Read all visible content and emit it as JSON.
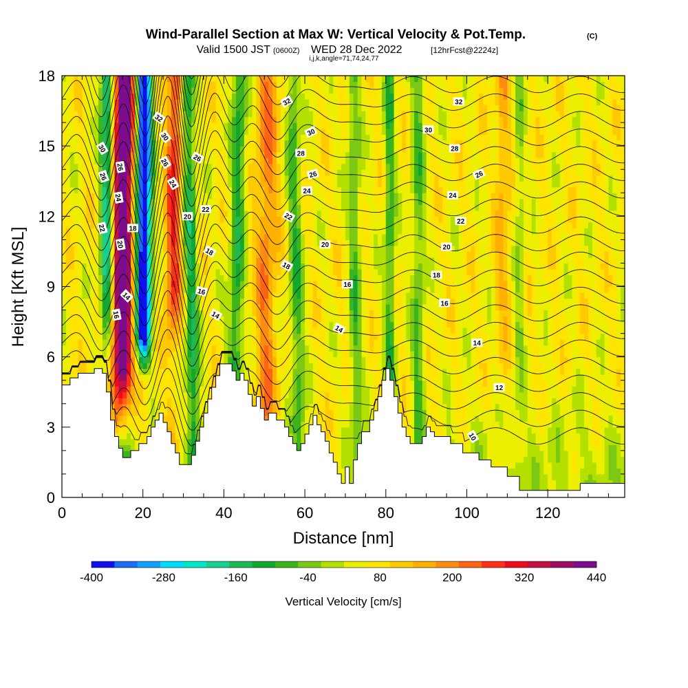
{
  "title": {
    "main": "Wind-Parallel Section at Max W: Vertical Velocity & Pot.Temp.",
    "unit": "(C)",
    "valid_prefix": "Valid 1500 JST",
    "valid_zulu": "(0600Z)",
    "valid_date": "WED 28 Dec 2022",
    "valid_fcst": "[12hrFcst@2224z]",
    "indices": "i,j,k,angle=71,74,24,77"
  },
  "chart_data": {
    "type": "heatmap",
    "xlabel": "Distance [nm]",
    "ylabel": "Height [Kft MSL]",
    "xlim": [
      0,
      139
    ],
    "ylim": [
      0,
      18
    ],
    "x_ticks": [
      0,
      20,
      40,
      60,
      80,
      100,
      120
    ],
    "y_ticks": [
      0,
      3,
      6,
      9,
      12,
      15,
      18
    ],
    "colorbar": {
      "label": "Vertical Velocity [cm/s]",
      "tick_labels": [
        "-400",
        "-280",
        "-160",
        "-40",
        "80",
        "200",
        "320",
        "440"
      ],
      "tick_values": [
        -400,
        -280,
        -160,
        -40,
        80,
        200,
        320,
        440
      ],
      "min": -400,
      "max": 440,
      "colors": [
        "#1010ee",
        "#1c6cf4",
        "#14a0ff",
        "#00dcff",
        "#00e8c8",
        "#16d08e",
        "#1cb85a",
        "#12a830",
        "#3cb41c",
        "#7cc814",
        "#b4e000",
        "#ecf000",
        "#ffe400",
        "#ffca00",
        "#ffb000",
        "#ff8c10",
        "#ff6414",
        "#ff3018",
        "#ee0c1c",
        "#c41044",
        "#9c0c64",
        "#7c0c8c"
      ]
    },
    "terrain": [
      [
        0,
        4.8
      ],
      [
        2,
        4.8
      ],
      [
        2,
        5.1
      ],
      [
        4,
        5.1
      ],
      [
        4,
        5.3
      ],
      [
        8,
        5.3
      ],
      [
        8,
        5.5
      ],
      [
        10,
        5.5
      ],
      [
        10,
        5.3
      ],
      [
        11,
        5.3
      ],
      [
        11,
        4.5
      ],
      [
        12,
        4.5
      ],
      [
        12,
        3.3
      ],
      [
        13,
        3.3
      ],
      [
        13,
        2.6
      ],
      [
        14,
        2.6
      ],
      [
        14,
        2.1
      ],
      [
        15,
        2.1
      ],
      [
        15,
        1.7
      ],
      [
        17,
        1.7
      ],
      [
        17,
        2.0
      ],
      [
        19,
        2.0
      ],
      [
        19,
        2.3
      ],
      [
        21,
        2.3
      ],
      [
        21,
        2.6
      ],
      [
        22,
        2.6
      ],
      [
        22,
        3.0
      ],
      [
        23,
        3.0
      ],
      [
        23,
        3.3
      ],
      [
        24,
        3.3
      ],
      [
        24,
        3.6
      ],
      [
        25,
        3.6
      ],
      [
        25,
        3.2
      ],
      [
        26,
        3.2
      ],
      [
        26,
        2.8
      ],
      [
        27,
        2.8
      ],
      [
        27,
        2.3
      ],
      [
        28,
        2.3
      ],
      [
        28,
        1.9
      ],
      [
        29,
        1.9
      ],
      [
        29,
        1.4
      ],
      [
        32,
        1.4
      ],
      [
        32,
        1.8
      ],
      [
        33,
        1.8
      ],
      [
        33,
        2.4
      ],
      [
        34,
        2.4
      ],
      [
        34,
        3.0
      ],
      [
        35,
        3.0
      ],
      [
        35,
        3.6
      ],
      [
        36,
        3.6
      ],
      [
        36,
        4.2
      ],
      [
        37,
        4.2
      ],
      [
        37,
        4.7
      ],
      [
        38,
        4.7
      ],
      [
        38,
        5.2
      ],
      [
        39,
        5.2
      ],
      [
        39,
        5.7
      ],
      [
        42,
        5.7
      ],
      [
        42,
        5.4
      ],
      [
        43,
        5.4
      ],
      [
        43,
        5.0
      ],
      [
        44,
        5.0
      ],
      [
        44,
        5.3
      ],
      [
        45,
        5.3
      ],
      [
        45,
        5.0
      ],
      [
        46,
        5.0
      ],
      [
        46,
        4.4
      ],
      [
        47,
        4.4
      ],
      [
        47,
        3.9
      ],
      [
        48,
        3.9
      ],
      [
        48,
        4.3
      ],
      [
        49,
        4.3
      ],
      [
        49,
        3.8
      ],
      [
        50,
        3.8
      ],
      [
        50,
        3.3
      ],
      [
        51,
        3.3
      ],
      [
        51,
        3.6
      ],
      [
        53,
        3.6
      ],
      [
        53,
        3.3
      ],
      [
        55,
        3.3
      ],
      [
        55,
        3.0
      ],
      [
        56,
        3.0
      ],
      [
        56,
        2.6
      ],
      [
        57,
        2.6
      ],
      [
        57,
        2.3
      ],
      [
        58,
        2.3
      ],
      [
        58,
        2.0
      ],
      [
        59,
        2.0
      ],
      [
        59,
        2.3
      ],
      [
        60,
        2.3
      ],
      [
        60,
        2.7
      ],
      [
        61,
        2.7
      ],
      [
        61,
        3.1
      ],
      [
        62,
        3.1
      ],
      [
        62,
        3.5
      ],
      [
        63,
        3.5
      ],
      [
        63,
        3.1
      ],
      [
        64,
        3.1
      ],
      [
        64,
        2.8
      ],
      [
        65,
        2.8
      ],
      [
        65,
        2.4
      ],
      [
        66,
        2.4
      ],
      [
        66,
        1.9
      ],
      [
        67,
        1.9
      ],
      [
        67,
        1.5
      ],
      [
        68,
        1.5
      ],
      [
        68,
        1.0
      ],
      [
        69,
        1.0
      ],
      [
        69,
        0.6
      ],
      [
        70,
        0.6
      ],
      [
        70,
        1.3
      ],
      [
        71,
        1.3
      ],
      [
        71,
        0.6
      ],
      [
        72,
        0.6
      ],
      [
        72,
        1.6
      ],
      [
        73,
        1.6
      ],
      [
        73,
        2.3
      ],
      [
        74,
        2.3
      ],
      [
        74,
        2.8
      ],
      [
        76,
        2.8
      ],
      [
        76,
        3.3
      ],
      [
        77,
        3.3
      ],
      [
        77,
        3.7
      ],
      [
        78,
        3.7
      ],
      [
        78,
        4.3
      ],
      [
        79,
        4.3
      ],
      [
        79,
        5.0
      ],
      [
        80,
        5.0
      ],
      [
        80,
        5.5
      ],
      [
        81,
        5.5
      ],
      [
        81,
        5.0
      ],
      [
        82,
        5.0
      ],
      [
        82,
        4.3
      ],
      [
        83,
        4.3
      ],
      [
        83,
        3.6
      ],
      [
        84,
        3.6
      ],
      [
        84,
        3.0
      ],
      [
        85,
        3.0
      ],
      [
        85,
        2.6
      ],
      [
        86,
        2.6
      ],
      [
        86,
        2.3
      ],
      [
        89,
        2.3
      ],
      [
        89,
        2.6
      ],
      [
        90,
        2.6
      ],
      [
        90,
        3.0
      ],
      [
        91,
        3.0
      ],
      [
        91,
        2.8
      ],
      [
        92,
        2.8
      ],
      [
        92,
        2.6
      ],
      [
        96,
        2.6
      ],
      [
        96,
        2.3
      ],
      [
        99,
        2.3
      ],
      [
        99,
        1.9
      ],
      [
        103,
        1.9
      ],
      [
        103,
        1.6
      ],
      [
        106,
        1.6
      ],
      [
        106,
        1.3
      ],
      [
        110,
        1.3
      ],
      [
        110,
        0.9
      ],
      [
        113,
        0.9
      ],
      [
        113,
        0.3
      ],
      [
        128,
        0.3
      ],
      [
        128,
        0.6
      ],
      [
        139,
        0.6
      ]
    ],
    "theta_contours": [
      {
        "value": 10,
        "label": "10"
      },
      {
        "value": 12,
        "label": "12"
      },
      {
        "value": 14,
        "label": "14"
      },
      {
        "value": 16,
        "label": "16"
      },
      {
        "value": 18,
        "label": "18"
      },
      {
        "value": 20,
        "label": "20"
      },
      {
        "value": 22,
        "label": "22"
      },
      {
        "value": 24,
        "label": "24"
      },
      {
        "value": 26,
        "label": "26"
      },
      {
        "value": 28,
        "label": "28"
      },
      {
        "value": 30,
        "label": "30"
      },
      {
        "value": 32,
        "label": "32"
      }
    ],
    "contour_labels": [
      {
        "text": "32",
        "x": 55.5,
        "y": 16.9,
        "angle": 30
      },
      {
        "text": "32",
        "x": 98,
        "y": 16.9,
        "angle": 0
      },
      {
        "text": "30",
        "x": 61.5,
        "y": 15.6,
        "angle": 25
      },
      {
        "text": "30",
        "x": 90.5,
        "y": 15.7,
        "angle": 0
      },
      {
        "text": "28",
        "x": 59,
        "y": 14.7,
        "angle": 0
      },
      {
        "text": "28",
        "x": 97,
        "y": 14.9,
        "angle": 0
      },
      {
        "text": "26",
        "x": 62,
        "y": 13.8,
        "angle": 15
      },
      {
        "text": "26",
        "x": 103,
        "y": 13.8,
        "angle": 25
      },
      {
        "text": "24",
        "x": 60.5,
        "y": 13.1,
        "angle": 0
      },
      {
        "text": "24",
        "x": 96.5,
        "y": 12.9,
        "angle": 0
      },
      {
        "text": "22",
        "x": 35.5,
        "y": 12.3,
        "angle": 0
      },
      {
        "text": "22",
        "x": 56,
        "y": 12.0,
        "angle": -30
      },
      {
        "text": "22",
        "x": 98.5,
        "y": 11.8,
        "angle": 0
      },
      {
        "text": "20",
        "x": 31,
        "y": 12.0,
        "angle": 0
      },
      {
        "text": "20",
        "x": 65,
        "y": 10.8,
        "angle": 0
      },
      {
        "text": "20",
        "x": 95,
        "y": 10.7,
        "angle": 0
      },
      {
        "text": "18",
        "x": 17.5,
        "y": 11.5,
        "angle": 0
      },
      {
        "text": "18",
        "x": 36.5,
        "y": 10.5,
        "angle": -30
      },
      {
        "text": "18",
        "x": 55.5,
        "y": 9.9,
        "angle": -30
      },
      {
        "text": "18",
        "x": 92.5,
        "y": 9.5,
        "angle": 0
      },
      {
        "text": "16",
        "x": 34.5,
        "y": 8.8,
        "angle": -15
      },
      {
        "text": "16",
        "x": 70.5,
        "y": 9.1,
        "angle": 0
      },
      {
        "text": "16",
        "x": 94.5,
        "y": 8.3,
        "angle": 0
      },
      {
        "text": "14",
        "x": 16,
        "y": 8.6,
        "angle": -45
      },
      {
        "text": "14",
        "x": 38,
        "y": 7.8,
        "angle": -30
      },
      {
        "text": "14",
        "x": 68.5,
        "y": 7.2,
        "angle": -30
      },
      {
        "text": "14",
        "x": 102.5,
        "y": 6.6,
        "angle": 0
      },
      {
        "text": "12",
        "x": 108,
        "y": 4.7,
        "angle": 0
      },
      {
        "text": "10",
        "x": 101.5,
        "y": 2.6,
        "angle": -60
      },
      {
        "text": "16",
        "x": 13.5,
        "y": 7.8,
        "angle": -80
      },
      {
        "text": "20",
        "x": 14.5,
        "y": 10.8,
        "angle": -80
      },
      {
        "text": "22",
        "x": 10,
        "y": 11.5,
        "angle": -75
      },
      {
        "text": "24",
        "x": 14,
        "y": 12.8,
        "angle": -80
      },
      {
        "text": "26",
        "x": 10.3,
        "y": 13.7,
        "angle": -70
      },
      {
        "text": "26",
        "x": 14.5,
        "y": 14.1,
        "angle": -80
      },
      {
        "text": "26",
        "x": 25.5,
        "y": 14.3,
        "angle": -60
      },
      {
        "text": "26",
        "x": 33.5,
        "y": 14.5,
        "angle": -30
      },
      {
        "text": "24",
        "x": 27.5,
        "y": 13.4,
        "angle": -60
      },
      {
        "text": "30",
        "x": 10,
        "y": 14.9,
        "angle": -60
      },
      {
        "text": "30",
        "x": 25.5,
        "y": 15.4,
        "angle": -55
      },
      {
        "text": "32",
        "x": 24,
        "y": 16.2,
        "angle": -35
      }
    ],
    "grid": false
  }
}
